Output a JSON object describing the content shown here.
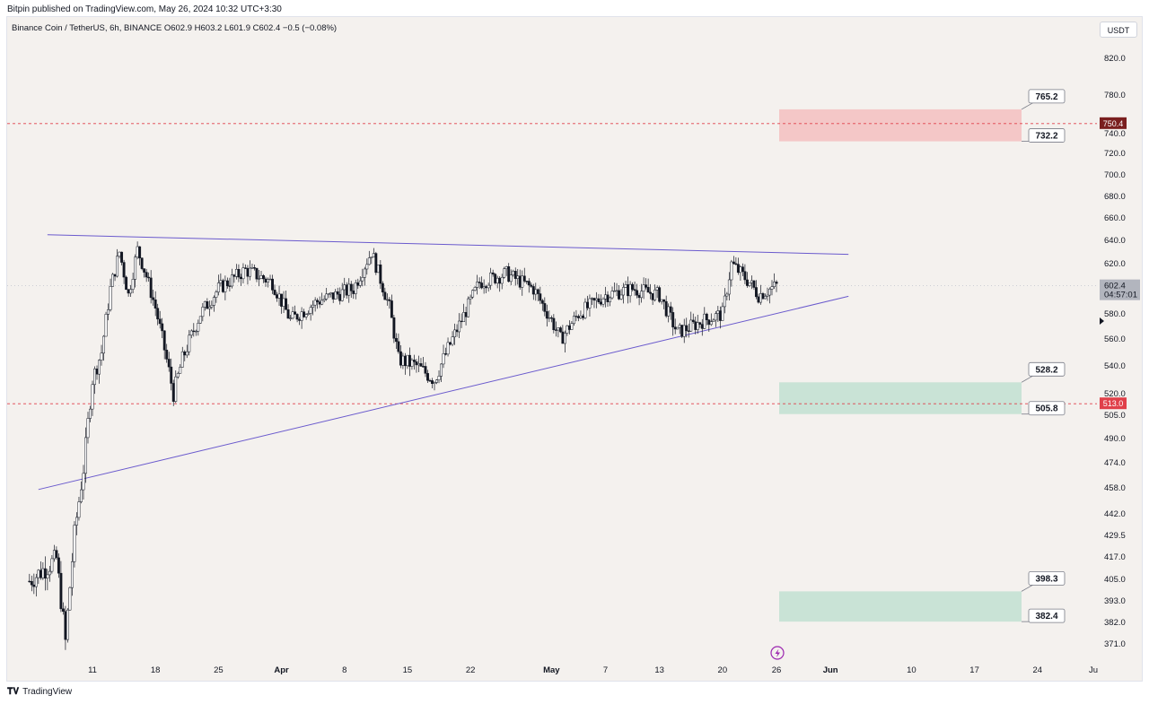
{
  "header": {
    "published": "Bitpin published on TradingView.com, May 26, 2024 10:32 UTC+3:30"
  },
  "legend": {
    "text": "Binance Coin / TetherUS, 6h, BINANCE  O602.9  H603.2  L601.9  C602.4  −0.5 (−0.08%)"
  },
  "currency_button": "USDT",
  "footer": {
    "logo": "𝐓𝐕",
    "brand": "TradingView"
  },
  "colors": {
    "background": "#f4f1ee",
    "candle": "#131722",
    "trendline": "#6a5acd",
    "resistance_zone": "#f4c7c7",
    "support_zone": "#c9e3d6",
    "red_dashed": "#e0404a",
    "upper_tag": "#7a1f1f",
    "lower_tag": "#e0404a",
    "price_tag": "#b2b5be"
  },
  "chart_data": {
    "type": "candlestick",
    "symbol": "Binance Coin / TetherUS",
    "interval": "6h",
    "exchange": "BINANCE",
    "ohlc_last": {
      "open": 602.9,
      "high": 603.2,
      "low": 601.9,
      "close": 602.4,
      "change": -0.5,
      "change_pct": -0.08
    },
    "y_axis_ticks": [
      "820.0",
      "780.0",
      "740.0",
      "720.0",
      "700.0",
      "680.0",
      "660.0",
      "640.0",
      "620.0",
      "580.0",
      "560.0",
      "540.0",
      "520.0",
      "505.0",
      "490.0",
      "474.0",
      "458.0",
      "442.0",
      "429.5",
      "417.0",
      "405.0",
      "393.0",
      "382.0",
      "371.0"
    ],
    "y_axis_values": [
      820,
      780,
      740,
      720,
      700,
      680,
      660,
      640,
      620,
      580,
      560,
      540,
      520,
      505,
      490,
      474,
      458,
      442,
      429.5,
      417,
      405,
      393,
      382,
      371
    ],
    "x_axis_ticks": [
      "11",
      "18",
      "25",
      "Apr",
      "8",
      "15",
      "22",
      "May",
      "7",
      "13",
      "20",
      "26",
      "Jun",
      "10",
      "17",
      "24",
      "Ju"
    ],
    "x_axis_dates": [
      "2024-03-11",
      "2024-03-18",
      "2024-03-25",
      "2024-04-01",
      "2024-04-08",
      "2024-04-15",
      "2024-04-22",
      "2024-05-01",
      "2024-05-07",
      "2024-05-13",
      "2024-05-20",
      "2024-05-26",
      "2024-06-01",
      "2024-06-10",
      "2024-06-17",
      "2024-06-24",
      "2024-07-01"
    ],
    "price_path": [
      [
        "2024-03-04",
        404
      ],
      [
        "2024-03-07",
        416
      ],
      [
        "2024-03-08",
        372
      ],
      [
        "2024-03-09",
        430
      ],
      [
        "2024-03-10",
        470
      ],
      [
        "2024-03-11",
        530
      ],
      [
        "2024-03-12",
        550
      ],
      [
        "2024-03-13",
        600
      ],
      [
        "2024-03-14",
        630
      ],
      [
        "2024-03-15",
        595
      ],
      [
        "2024-03-16",
        632
      ],
      [
        "2024-03-17",
        610
      ],
      [
        "2024-03-18",
        585
      ],
      [
        "2024-03-20",
        520
      ],
      [
        "2024-03-21",
        545
      ],
      [
        "2024-03-23",
        580
      ],
      [
        "2024-03-25",
        600
      ],
      [
        "2024-03-28",
        615
      ],
      [
        "2024-03-31",
        605
      ],
      [
        "2024-04-02",
        575
      ],
      [
        "2024-04-05",
        590
      ],
      [
        "2024-04-09",
        600
      ],
      [
        "2024-04-11",
        630
      ],
      [
        "2024-04-13",
        585
      ],
      [
        "2024-04-14",
        545
      ],
      [
        "2024-04-16",
        540
      ],
      [
        "2024-04-18",
        530
      ],
      [
        "2024-04-20",
        560
      ],
      [
        "2024-04-23",
        605
      ],
      [
        "2024-04-26",
        612
      ],
      [
        "2024-04-29",
        600
      ],
      [
        "2024-05-01",
        575
      ],
      [
        "2024-05-02",
        560
      ],
      [
        "2024-05-04",
        580
      ],
      [
        "2024-05-07",
        595
      ],
      [
        "2024-05-10",
        600
      ],
      [
        "2024-05-13",
        595
      ],
      [
        "2024-05-15",
        565
      ],
      [
        "2024-05-18",
        575
      ],
      [
        "2024-05-20",
        580
      ],
      [
        "2024-05-21",
        620
      ],
      [
        "2024-05-23",
        605
      ],
      [
        "2024-05-24",
        595
      ],
      [
        "2024-05-26",
        602.4
      ]
    ],
    "trendlines": [
      {
        "name": "",
        "from": [
          "2024-03-06",
          645
        ],
        "to": [
          "2024-06-03",
          628
        ]
      },
      {
        "name": "",
        "from": [
          "2024-03-05",
          457
        ],
        "to": [
          "2024-06-03",
          594
        ]
      }
    ],
    "horizontal_levels": [
      {
        "value": 750.4,
        "label": "750.4",
        "style": "dashed"
      },
      {
        "value": 513.0,
        "label": "513.0",
        "style": "dashed"
      }
    ],
    "current_price": {
      "value": 602.4,
      "label": "602.4",
      "countdown": "04:57:01"
    },
    "zones": [
      {
        "kind": "resistance",
        "top": 765.2,
        "bottom": 732.2,
        "labels": [
          "765.2",
          "732.2"
        ]
      },
      {
        "kind": "support",
        "top": 528.2,
        "bottom": 505.8,
        "labels": [
          "528.2",
          "505.8"
        ]
      },
      {
        "kind": "support",
        "top": 398.3,
        "bottom": 382.4,
        "labels": [
          "398.3",
          "382.4"
        ]
      }
    ]
  }
}
